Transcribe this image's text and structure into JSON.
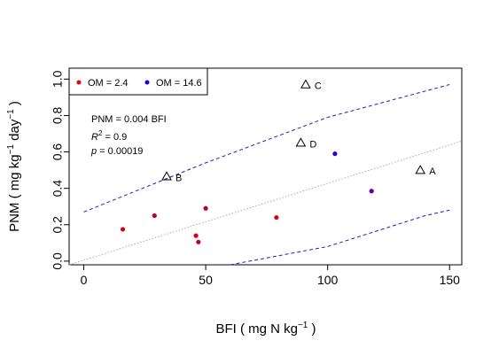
{
  "chart_data": {
    "type": "scatter",
    "x_axis": {
      "title_main": "BFI ( mg N kg",
      "title_sup": "−1",
      "title_end": " )",
      "ticks": [
        0,
        50,
        100,
        150
      ],
      "range": [
        -6,
        155
      ]
    },
    "y_axis": {
      "title_main": "PNM ( mg kg",
      "title_sup1": "−1",
      "title_mid": " day",
      "title_sup2": "−1",
      "title_end": " )",
      "ticks": [
        "0.0",
        "0.2",
        "0.4",
        "0.6",
        "0.8",
        "1.0"
      ],
      "range": [
        -0.02,
        1.06
      ]
    },
    "legend": {
      "position": "top-left",
      "entries": [
        {
          "label": "OM = 2.4",
          "color": "#e8001c"
        },
        {
          "label": "OM = 14.6",
          "color": "#0a00e8"
        }
      ]
    },
    "annotation": {
      "line1": "PNM = 0.004 BFI",
      "r2_label": "R",
      "r2_sup": "2",
      "r2_value": " = 0.9",
      "p_label": "p",
      "p_value": " = 0.00019"
    },
    "regression": {
      "slope": 0.004255,
      "intercept": 0.0,
      "x_range": [
        -6,
        155
      ],
      "color": "#aaaaaa"
    },
    "upper_band": {
      "points": [
        [
          0,
          0.27
        ],
        [
          50,
          0.54
        ],
        [
          100,
          0.79
        ],
        [
          150,
          0.97
        ]
      ],
      "color": "#1f1fb4"
    },
    "lower_band": {
      "points": [
        [
          60,
          -0.03
        ],
        [
          100,
          0.08
        ],
        [
          140,
          0.25
        ],
        [
          150,
          0.28
        ]
      ],
      "color": "#1f1fb4"
    },
    "points": [
      {
        "x": 16,
        "y": 0.175,
        "color": "#d6001c"
      },
      {
        "x": 29,
        "y": 0.25,
        "color": "#c2002e"
      },
      {
        "x": 46,
        "y": 0.14,
        "color": "#d6001c"
      },
      {
        "x": 47,
        "y": 0.105,
        "color": "#c2002e"
      },
      {
        "x": 50,
        "y": 0.29,
        "color": "#b0003e"
      },
      {
        "x": 79,
        "y": 0.24,
        "color": "#d6001c"
      },
      {
        "x": 103,
        "y": 0.59,
        "color": "#3000c8"
      },
      {
        "x": 118,
        "y": 0.385,
        "color": "#6a0098"
      }
    ],
    "triangles": [
      {
        "x": 34,
        "y": 0.465,
        "label": "B"
      },
      {
        "x": 91,
        "y": 0.97,
        "label": "C"
      },
      {
        "x": 89,
        "y": 0.65,
        "label": "D"
      },
      {
        "x": 138,
        "y": 0.5,
        "label": "A"
      }
    ]
  }
}
